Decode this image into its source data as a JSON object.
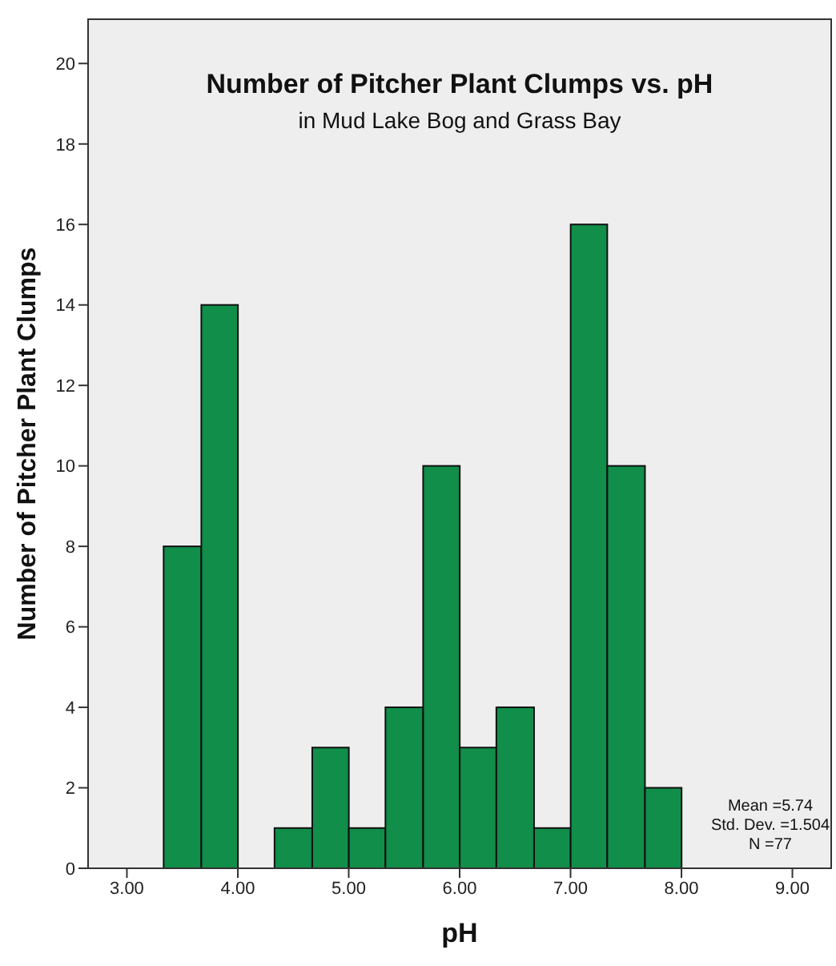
{
  "chart_data": {
    "type": "histogram",
    "title": "Number of Pitcher Plant Clumps vs. pH",
    "subtitle": "in Mud Lake Bog and Grass Bay",
    "xlabel": "pH",
    "ylabel": "Number of Pitcher Plant Clumps",
    "bins": [
      3.33,
      3.67,
      4,
      4.33,
      4.67,
      5,
      5.33,
      5.67,
      6,
      6.33,
      6.67,
      7,
      7.33,
      7.67,
      8
    ],
    "values": [
      8,
      14,
      0,
      1,
      3,
      1,
      4,
      10,
      3,
      4,
      1,
      16,
      10,
      2
    ],
    "color": "#108e4a",
    "xlim": [
      2.65,
      9.35
    ],
    "xticks": [
      {
        "value": 3,
        "label": "3.00"
      },
      {
        "value": 4,
        "label": "4.00"
      },
      {
        "value": 5,
        "label": "5.00"
      },
      {
        "value": 6,
        "label": "6.00"
      },
      {
        "value": 7,
        "label": "7.00"
      },
      {
        "value": 8,
        "label": "8.00"
      },
      {
        "value": 9,
        "label": "9.00"
      }
    ],
    "ylim": [
      0,
      21.1
    ],
    "yticks": [
      0,
      2,
      4,
      6,
      8,
      10,
      12,
      14,
      16,
      18,
      20
    ],
    "annotations": [
      "Mean =5.74",
      "Std. Dev. =1.504",
      "N =77"
    ]
  }
}
